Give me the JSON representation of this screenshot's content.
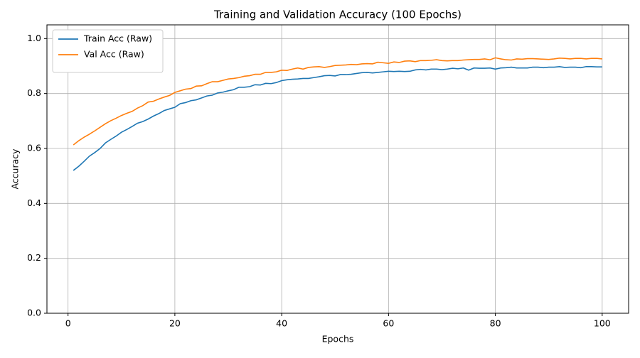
{
  "chart_data": {
    "type": "line",
    "title": "Training and Validation Accuracy (100 Epochs)",
    "x_label": "Epochs",
    "y_label": "Accuracy",
    "x": [
      1,
      2,
      3,
      4,
      5,
      6,
      7,
      8,
      9,
      10,
      11,
      12,
      13,
      14,
      15,
      16,
      17,
      18,
      19,
      20,
      21,
      22,
      23,
      24,
      25,
      26,
      27,
      28,
      29,
      30,
      31,
      32,
      33,
      34,
      35,
      36,
      37,
      38,
      39,
      40,
      41,
      42,
      43,
      44,
      45,
      46,
      47,
      48,
      49,
      50,
      51,
      52,
      53,
      54,
      55,
      56,
      57,
      58,
      59,
      60,
      61,
      62,
      63,
      64,
      65,
      66,
      67,
      68,
      69,
      70,
      71,
      72,
      73,
      74,
      75,
      76,
      77,
      78,
      79,
      80,
      81,
      82,
      83,
      84,
      85,
      86,
      87,
      88,
      89,
      90,
      91,
      92,
      93,
      94,
      95,
      96,
      97,
      98,
      99,
      100
    ],
    "series": [
      {
        "name": "Train Acc (Raw)",
        "color": "#1f77b4",
        "values": [
          0.52,
          0.535,
          0.553,
          0.572,
          0.585,
          0.6,
          0.62,
          0.633,
          0.645,
          0.659,
          0.669,
          0.68,
          0.692,
          0.698,
          0.707,
          0.718,
          0.727,
          0.738,
          0.744,
          0.75,
          0.763,
          0.767,
          0.774,
          0.777,
          0.784,
          0.791,
          0.794,
          0.802,
          0.805,
          0.81,
          0.814,
          0.823,
          0.823,
          0.825,
          0.832,
          0.831,
          0.837,
          0.836,
          0.84,
          0.847,
          0.85,
          0.852,
          0.853,
          0.855,
          0.855,
          0.858,
          0.861,
          0.865,
          0.866,
          0.864,
          0.869,
          0.869,
          0.87,
          0.873,
          0.876,
          0.877,
          0.875,
          0.877,
          0.879,
          0.881,
          0.88,
          0.881,
          0.88,
          0.881,
          0.886,
          0.888,
          0.886,
          0.889,
          0.889,
          0.887,
          0.889,
          0.892,
          0.89,
          0.893,
          0.885,
          0.893,
          0.892,
          0.892,
          0.893,
          0.889,
          0.893,
          0.894,
          0.896,
          0.893,
          0.893,
          0.893,
          0.896,
          0.896,
          0.894,
          0.896,
          0.896,
          0.898,
          0.895,
          0.896,
          0.896,
          0.894,
          0.898,
          0.898,
          0.897,
          0.897
        ]
      },
      {
        "name": "Val Acc (Raw)",
        "color": "#ff7f0e",
        "values": [
          0.613,
          0.628,
          0.641,
          0.652,
          0.664,
          0.677,
          0.69,
          0.701,
          0.71,
          0.72,
          0.728,
          0.735,
          0.747,
          0.756,
          0.769,
          0.772,
          0.78,
          0.787,
          0.793,
          0.804,
          0.81,
          0.816,
          0.818,
          0.827,
          0.828,
          0.836,
          0.843,
          0.843,
          0.848,
          0.853,
          0.855,
          0.858,
          0.863,
          0.865,
          0.87,
          0.87,
          0.877,
          0.877,
          0.879,
          0.885,
          0.884,
          0.889,
          0.893,
          0.889,
          0.895,
          0.897,
          0.898,
          0.895,
          0.898,
          0.902,
          0.903,
          0.904,
          0.906,
          0.905,
          0.908,
          0.909,
          0.908,
          0.914,
          0.912,
          0.91,
          0.915,
          0.913,
          0.918,
          0.919,
          0.916,
          0.92,
          0.92,
          0.921,
          0.923,
          0.92,
          0.919,
          0.92,
          0.92,
          0.922,
          0.923,
          0.924,
          0.924,
          0.926,
          0.923,
          0.93,
          0.926,
          0.923,
          0.922,
          0.926,
          0.925,
          0.927,
          0.927,
          0.926,
          0.925,
          0.924,
          0.926,
          0.929,
          0.928,
          0.926,
          0.928,
          0.928,
          0.926,
          0.928,
          0.928,
          0.926
        ]
      }
    ],
    "xlim": [
      -3.95,
      104.95
    ],
    "ylim": [
      0,
      1.05
    ],
    "xticks": [
      0,
      20,
      40,
      60,
      80,
      100
    ],
    "yticks": [
      {
        "value": 0,
        "label": "0.0"
      },
      0.2,
      0.4,
      0.6,
      0.8,
      {
        "value": 1,
        "label": "1.0"
      }
    ],
    "grid": true,
    "legend": "upper-left"
  }
}
